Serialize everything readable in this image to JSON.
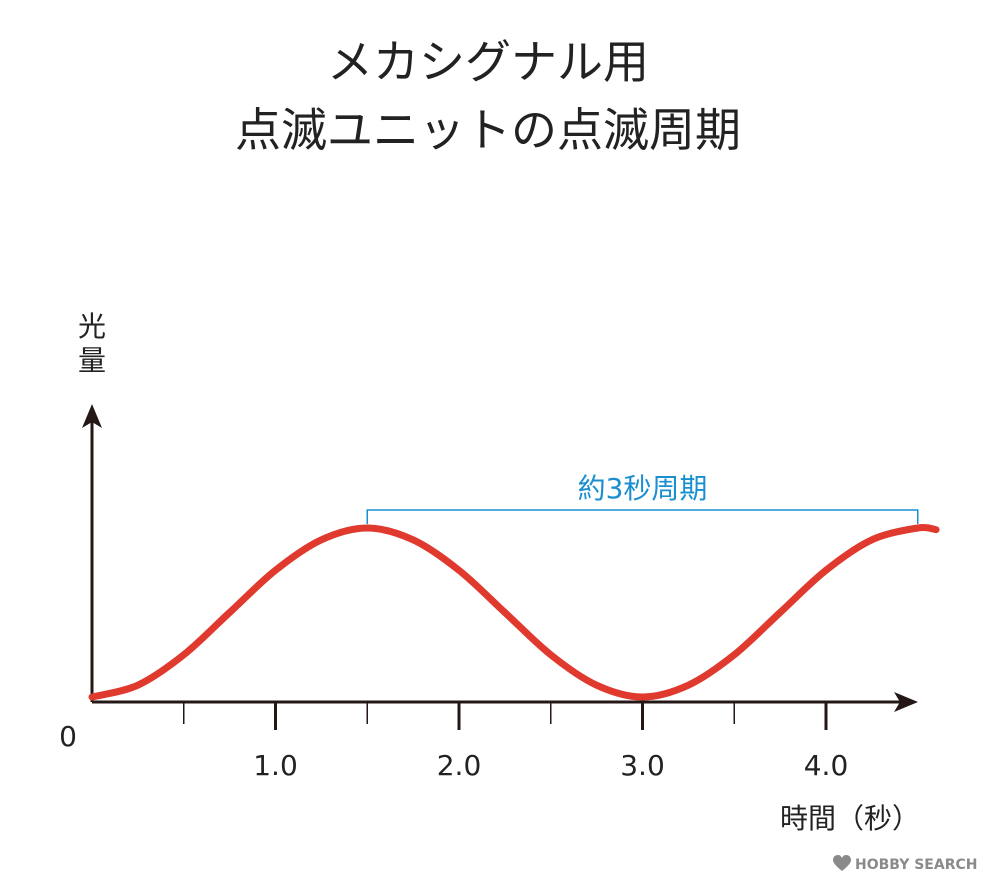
{
  "chart_data": {
    "type": "line",
    "title": [
      "メカシグナル用",
      "点滅ユニットの点滅周期"
    ],
    "xlabel": "時間（秒）",
    "ylabel": "光量",
    "origin_label": "0",
    "x_tick_values": [
      0.5,
      1.0,
      1.5,
      2.0,
      2.5,
      3.0,
      3.5,
      4.0
    ],
    "x_tick_labels": [
      {
        "x": 1.0,
        "label": "1.0"
      },
      {
        "x": 2.0,
        "label": "2.0"
      },
      {
        "x": 3.0,
        "label": "3.0"
      },
      {
        "x": 4.0,
        "label": "4.0"
      }
    ],
    "xlim": [
      0,
      4.5
    ],
    "ylim": [
      0,
      1
    ],
    "grid": false,
    "series": [
      {
        "color": "#e03a2f",
        "x": [
          0,
          0.25,
          0.5,
          0.75,
          1.0,
          1.25,
          1.5,
          1.75,
          2.0,
          2.25,
          2.5,
          2.75,
          3.0,
          3.25,
          3.5,
          3.75,
          4.0,
          4.25,
          4.5,
          4.6
        ],
        "y": [
          0,
          0.07,
          0.25,
          0.5,
          0.75,
          0.93,
          1.0,
          0.93,
          0.75,
          0.5,
          0.25,
          0.07,
          0,
          0.07,
          0.25,
          0.5,
          0.75,
          0.93,
          1.0,
          0.99
        ]
      }
    ],
    "annotation": {
      "label": "約3秒周期",
      "x_start": 1.5,
      "x_end": 4.5,
      "color": "#1a8fd0"
    }
  },
  "branding": {
    "text": "HOBBY SEARCH"
  }
}
